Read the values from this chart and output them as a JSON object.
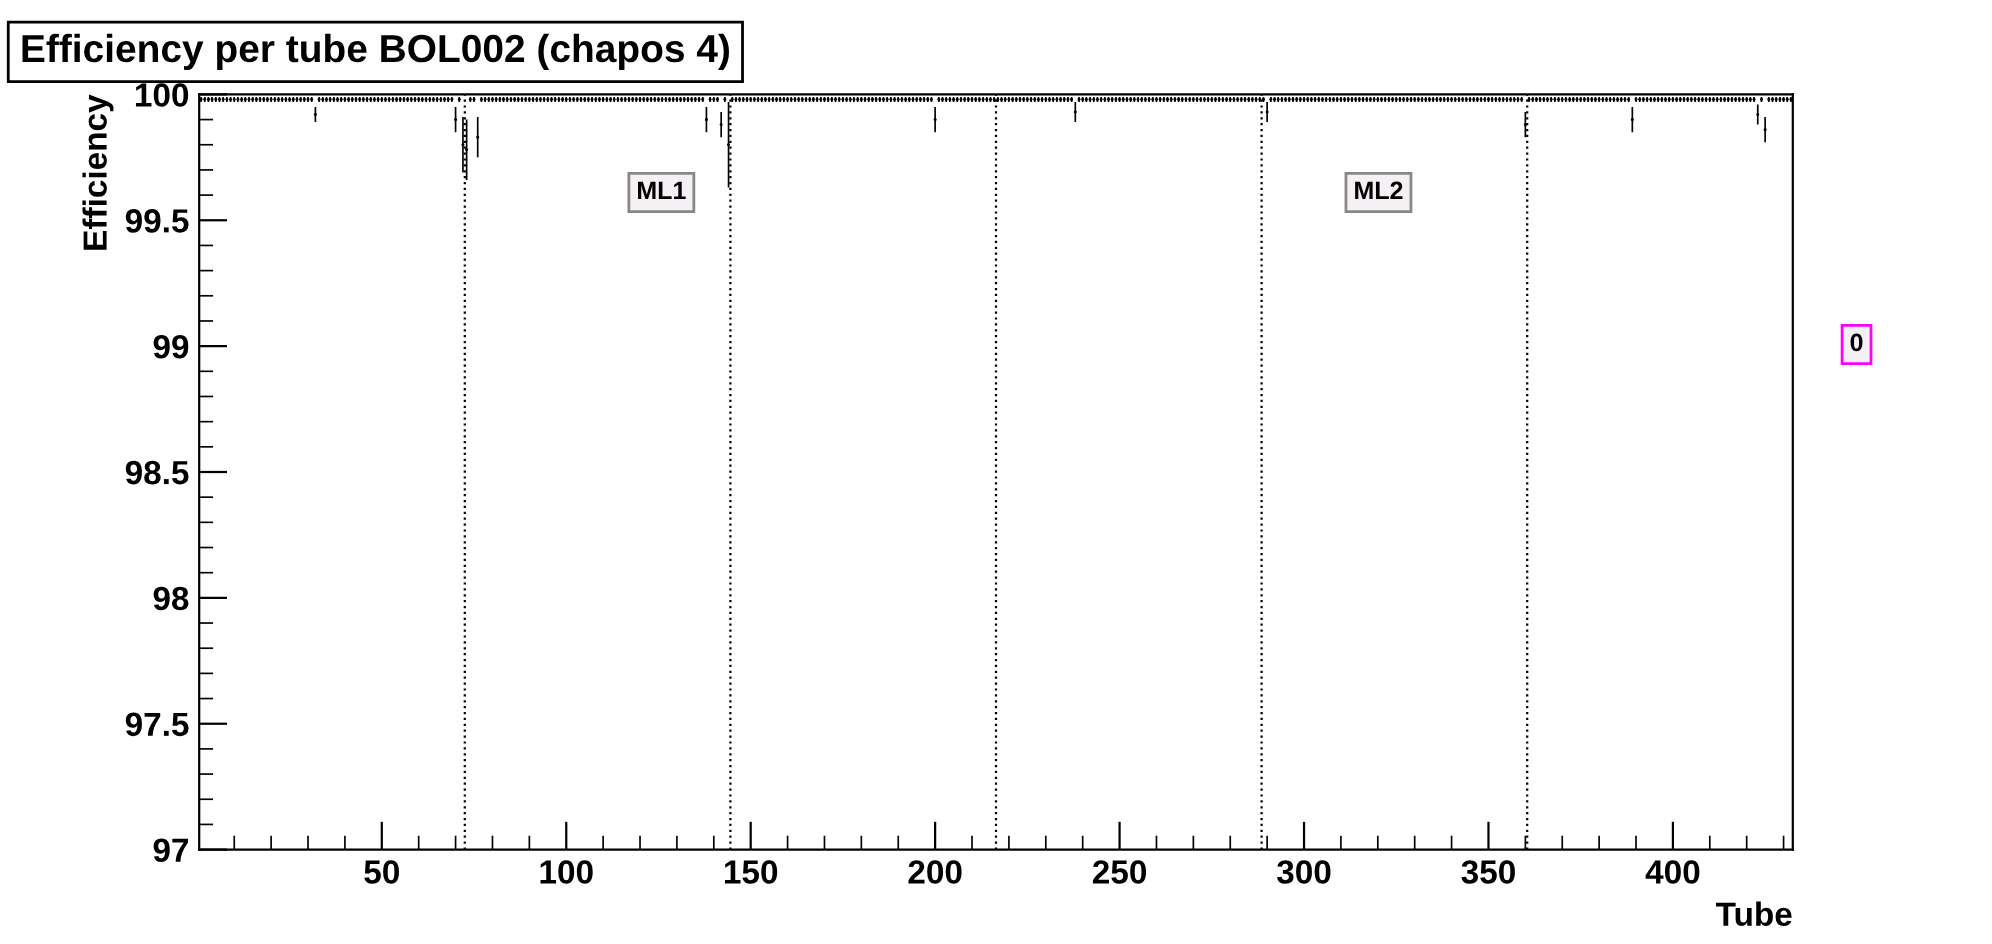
{
  "chart_data": {
    "type": "scatter",
    "title": "Efficiency per tube BOL002 (chapos 4)",
    "xlabel": "Tube",
    "ylabel": "Efficiency",
    "x": [
      1,
      2,
      3,
      4,
      5,
      6,
      7,
      8,
      9,
      10,
      11,
      12,
      13,
      14,
      15,
      16,
      17,
      18,
      19,
      20,
      21,
      22,
      23,
      24,
      25,
      26,
      27,
      28,
      29,
      30,
      31,
      32,
      33,
      34,
      35,
      36,
      37,
      38,
      39,
      40,
      41,
      42,
      43,
      44,
      45,
      46,
      47,
      48,
      49,
      50,
      51,
      52,
      53,
      54,
      55,
      56,
      57,
      58,
      59,
      60,
      61,
      62,
      63,
      64,
      65,
      66,
      67,
      68,
      69,
      70,
      71,
      72,
      73,
      74,
      75,
      76,
      77,
      78,
      79,
      80,
      81,
      82,
      83,
      84,
      85,
      86,
      87,
      88,
      89,
      90,
      91,
      92,
      93,
      94,
      95,
      96,
      97,
      98,
      99,
      100,
      101,
      102,
      103,
      104,
      105,
      106,
      107,
      108,
      109,
      110,
      111,
      112,
      113,
      114,
      115,
      116,
      117,
      118,
      119,
      120,
      121,
      122,
      123,
      124,
      125,
      126,
      127,
      128,
      129,
      130,
      131,
      132,
      133,
      134,
      135,
      136,
      137,
      138,
      139,
      140,
      141,
      142,
      143,
      144,
      145,
      146,
      147,
      148,
      149,
      150,
      151,
      152,
      153,
      154,
      155,
      156,
      157,
      158,
      159,
      160,
      161,
      162,
      163,
      164,
      165,
      166,
      167,
      168,
      169,
      170,
      171,
      172,
      173,
      174,
      175,
      176,
      177,
      178,
      179,
      180,
      181,
      182,
      183,
      184,
      185,
      186,
      187,
      188,
      189,
      190,
      191,
      192,
      193,
      194,
      195,
      196,
      197,
      198,
      199,
      200,
      201,
      202,
      203,
      204,
      205,
      206,
      207,
      208,
      209,
      210,
      211,
      212,
      213,
      214,
      215,
      216,
      217,
      218,
      219,
      220,
      221,
      222,
      223,
      224,
      225,
      226,
      227,
      228,
      229,
      230,
      231,
      232,
      233,
      234,
      235,
      236,
      237,
      238,
      239,
      240,
      241,
      242,
      243,
      244,
      245,
      246,
      247,
      248,
      249,
      250,
      251,
      252,
      253,
      254,
      255,
      256,
      257,
      258,
      259,
      260,
      261,
      262,
      263,
      264,
      265,
      266,
      267,
      268,
      269,
      270,
      271,
      272,
      273,
      274,
      275,
      276,
      277,
      278,
      279,
      280,
      281,
      282,
      283,
      284,
      285,
      286,
      287,
      288,
      289,
      290,
      291,
      292,
      293,
      294,
      295,
      296,
      297,
      298,
      299,
      300,
      301,
      302,
      303,
      304,
      305,
      306,
      307,
      308,
      309,
      310,
      311,
      312,
      313,
      314,
      315,
      316,
      317,
      318,
      319,
      320,
      321,
      322,
      323,
      324,
      325,
      326,
      327,
      328,
      329,
      330,
      331,
      332,
      333,
      334,
      335,
      336,
      337,
      338,
      339,
      340,
      341,
      342,
      343,
      344,
      345,
      346,
      347,
      348,
      349,
      350,
      351,
      352,
      353,
      354,
      355,
      356,
      357,
      358,
      359,
      360,
      361,
      362,
      363,
      364,
      365,
      366,
      367,
      368,
      369,
      370,
      371,
      372,
      373,
      374,
      375,
      376,
      377,
      378,
      379,
      380,
      381,
      382,
      383,
      384,
      385,
      386,
      387,
      388,
      389,
      390,
      391,
      392,
      393,
      394,
      395,
      396,
      397,
      398,
      399,
      400,
      401,
      402,
      403,
      404,
      405,
      406,
      407,
      408,
      409,
      410,
      411,
      412,
      413,
      414,
      415,
      416,
      417,
      418,
      419,
      420,
      421,
      422,
      423,
      424,
      425,
      426,
      427,
      428,
      429,
      430,
      431,
      432
    ],
    "series": [
      {
        "color": "#000000",
        "values": [
          99.98,
          99.98,
          99.98,
          99.98,
          99.98,
          99.98,
          99.98,
          99.98,
          99.98,
          99.98,
          99.98,
          99.98,
          99.98,
          99.98,
          99.98,
          99.98,
          99.98,
          99.98,
          99.98,
          99.98,
          99.98,
          99.98,
          99.98,
          99.98,
          99.98,
          99.98,
          99.98,
          99.98,
          99.98,
          99.98,
          99.98,
          99.92,
          99.98,
          99.98,
          99.98,
          99.98,
          99.98,
          99.98,
          99.98,
          99.98,
          99.98,
          99.98,
          99.98,
          99.98,
          99.98,
          99.98,
          99.98,
          99.98,
          99.98,
          99.98,
          99.98,
          99.98,
          99.98,
          99.98,
          99.98,
          99.98,
          99.98,
          99.98,
          99.98,
          99.98,
          99.98,
          99.98,
          99.98,
          99.98,
          99.98,
          99.98,
          99.98,
          99.98,
          99.98,
          99.9,
          99.98,
          99.8,
          99.78,
          99.98,
          99.98,
          99.83,
          99.98,
          99.98,
          99.98,
          99.98,
          99.98,
          99.98,
          99.98,
          99.98,
          99.98,
          99.98,
          99.98,
          99.98,
          99.98,
          99.98,
          99.98,
          99.98,
          99.98,
          99.98,
          99.98,
          99.98,
          99.98,
          99.98,
          99.98,
          99.98,
          99.98,
          99.98,
          99.98,
          99.98,
          99.98,
          99.98,
          99.98,
          99.98,
          99.98,
          99.98,
          99.98,
          99.98,
          99.98,
          99.98,
          99.98,
          99.98,
          99.98,
          99.98,
          99.98,
          99.98,
          99.98,
          99.98,
          99.98,
          99.98,
          99.98,
          99.98,
          99.98,
          99.98,
          99.98,
          99.98,
          99.98,
          99.98,
          99.98,
          99.98,
          99.98,
          99.98,
          99.98,
          99.9,
          99.98,
          99.98,
          99.98,
          99.88,
          99.98,
          99.8,
          99.98,
          99.98,
          99.98,
          99.98,
          99.98,
          99.98,
          99.98,
          99.98,
          99.98,
          99.98,
          99.98,
          99.98,
          99.98,
          99.98,
          99.98,
          99.98,
          99.98,
          99.98,
          99.98,
          99.98,
          99.98,
          99.98,
          99.98,
          99.98,
          99.98,
          99.98,
          99.98,
          99.98,
          99.98,
          99.98,
          99.98,
          99.98,
          99.98,
          99.98,
          99.98,
          99.98,
          99.98,
          99.98,
          99.98,
          99.98,
          99.98,
          99.98,
          99.98,
          99.98,
          99.98,
          99.98,
          99.98,
          99.98,
          99.98,
          99.98,
          99.98,
          99.98,
          99.98,
          99.98,
          99.98,
          99.9,
          99.98,
          99.98,
          99.98,
          99.98,
          99.98,
          99.98,
          99.98,
          99.98,
          99.98,
          99.98,
          99.98,
          99.98,
          99.98,
          99.98,
          99.98,
          99.98,
          99.98,
          99.98,
          99.98,
          99.98,
          99.98,
          99.98,
          99.98,
          99.98,
          99.98,
          99.98,
          99.98,
          99.98,
          99.98,
          99.98,
          99.98,
          99.98,
          99.98,
          99.98,
          99.98,
          99.98,
          99.98,
          99.93,
          99.98,
          99.98,
          99.98,
          99.98,
          99.98,
          99.98,
          99.98,
          99.98,
          99.98,
          99.98,
          99.98,
          99.98,
          99.98,
          99.98,
          99.98,
          99.98,
          99.98,
          99.98,
          99.98,
          99.98,
          99.98,
          99.98,
          99.98,
          99.98,
          99.98,
          99.98,
          99.98,
          99.98,
          99.98,
          99.98,
          99.98,
          99.98,
          99.98,
          99.98,
          99.98,
          99.98,
          99.98,
          99.98,
          99.98,
          99.98,
          99.98,
          99.98,
          99.98,
          99.98,
          99.98,
          99.98,
          99.98,
          99.98,
          99.98,
          99.98,
          99.98,
          99.93,
          99.98,
          99.98,
          99.98,
          99.98,
          99.98,
          99.98,
          99.98,
          99.98,
          99.98,
          99.98,
          99.98,
          99.98,
          99.98,
          99.98,
          99.98,
          99.98,
          99.98,
          99.98,
          99.98,
          99.98,
          99.98,
          99.98,
          99.98,
          99.98,
          99.98,
          99.98,
          99.98,
          99.98,
          99.98,
          99.98,
          99.98,
          99.98,
          99.98,
          99.98,
          99.98,
          99.98,
          99.98,
          99.98,
          99.98,
          99.98,
          99.98,
          99.98,
          99.98,
          99.98,
          99.98,
          99.98,
          99.98,
          99.98,
          99.98,
          99.98,
          99.98,
          99.98,
          99.98,
          99.98,
          99.98,
          99.98,
          99.98,
          99.98,
          99.98,
          99.98,
          99.98,
          99.98,
          99.98,
          99.98,
          99.98,
          99.98,
          99.98,
          99.98,
          99.98,
          99.88,
          99.98,
          99.98,
          99.98,
          99.98,
          99.98,
          99.98,
          99.98,
          99.98,
          99.98,
          99.98,
          99.98,
          99.98,
          99.98,
          99.98,
          99.98,
          99.98,
          99.98,
          99.98,
          99.98,
          99.98,
          99.98,
          99.98,
          99.98,
          99.98,
          99.98,
          99.98,
          99.98,
          99.98,
          99.9,
          99.98,
          99.98,
          99.98,
          99.98,
          99.98,
          99.98,
          99.98,
          99.98,
          99.98,
          99.98,
          99.98,
          99.98,
          99.98,
          99.98,
          99.98,
          99.98,
          99.98,
          99.98,
          99.98,
          99.98,
          99.98,
          99.98,
          99.98,
          99.98,
          99.98,
          99.98,
          99.98,
          99.98,
          99.98,
          99.98,
          99.98,
          99.98,
          99.98,
          99.92,
          99.98,
          99.86,
          99.98,
          99.98,
          99.98,
          99.98,
          99.98,
          99.98,
          99.98
        ],
        "errors": [
          0.01,
          0.01,
          0.01,
          0.01,
          0.01,
          0.01,
          0.01,
          0.01,
          0.01,
          0.01,
          0.01,
          0.01,
          0.01,
          0.01,
          0.01,
          0.01,
          0.01,
          0.01,
          0.01,
          0.01,
          0.01,
          0.01,
          0.01,
          0.01,
          0.01,
          0.01,
          0.01,
          0.01,
          0.01,
          0.01,
          0.01,
          0.03,
          0.01,
          0.01,
          0.01,
          0.01,
          0.01,
          0.01,
          0.01,
          0.01,
          0.01,
          0.01,
          0.01,
          0.01,
          0.01,
          0.01,
          0.01,
          0.01,
          0.01,
          0.01,
          0.01,
          0.01,
          0.01,
          0.01,
          0.01,
          0.01,
          0.01,
          0.01,
          0.01,
          0.01,
          0.01,
          0.01,
          0.01,
          0.01,
          0.01,
          0.01,
          0.01,
          0.01,
          0.01,
          0.05,
          0.01,
          0.11,
          0.12,
          0.01,
          0.01,
          0.08,
          0.01,
          0.01,
          0.01,
          0.01,
          0.01,
          0.01,
          0.01,
          0.01,
          0.01,
          0.01,
          0.01,
          0.01,
          0.01,
          0.01,
          0.01,
          0.01,
          0.01,
          0.01,
          0.01,
          0.01,
          0.01,
          0.01,
          0.01,
          0.01,
          0.01,
          0.01,
          0.01,
          0.01,
          0.01,
          0.01,
          0.01,
          0.01,
          0.01,
          0.01,
          0.01,
          0.01,
          0.01,
          0.01,
          0.01,
          0.01,
          0.01,
          0.01,
          0.01,
          0.01,
          0.01,
          0.01,
          0.01,
          0.01,
          0.01,
          0.01,
          0.01,
          0.01,
          0.01,
          0.01,
          0.01,
          0.01,
          0.01,
          0.01,
          0.01,
          0.01,
          0.01,
          0.05,
          0.01,
          0.01,
          0.01,
          0.05,
          0.01,
          0.17,
          0.01,
          0.01,
          0.01,
          0.01,
          0.01,
          0.01,
          0.01,
          0.01,
          0.01,
          0.01,
          0.01,
          0.01,
          0.01,
          0.01,
          0.01,
          0.01,
          0.01,
          0.01,
          0.01,
          0.01,
          0.01,
          0.01,
          0.01,
          0.01,
          0.01,
          0.01,
          0.01,
          0.01,
          0.01,
          0.01,
          0.01,
          0.01,
          0.01,
          0.01,
          0.01,
          0.01,
          0.01,
          0.01,
          0.01,
          0.01,
          0.01,
          0.01,
          0.01,
          0.01,
          0.01,
          0.01,
          0.01,
          0.01,
          0.01,
          0.01,
          0.01,
          0.01,
          0.01,
          0.01,
          0.01,
          0.05,
          0.01,
          0.01,
          0.01,
          0.01,
          0.01,
          0.01,
          0.01,
          0.01,
          0.01,
          0.01,
          0.01,
          0.01,
          0.01,
          0.01,
          0.01,
          0.01,
          0.01,
          0.01,
          0.01,
          0.01,
          0.01,
          0.01,
          0.01,
          0.01,
          0.01,
          0.01,
          0.01,
          0.01,
          0.01,
          0.01,
          0.01,
          0.01,
          0.01,
          0.01,
          0.01,
          0.01,
          0.01,
          0.04,
          0.01,
          0.01,
          0.01,
          0.01,
          0.01,
          0.01,
          0.01,
          0.01,
          0.01,
          0.01,
          0.01,
          0.01,
          0.01,
          0.01,
          0.01,
          0.01,
          0.01,
          0.01,
          0.01,
          0.01,
          0.01,
          0.01,
          0.01,
          0.01,
          0.01,
          0.01,
          0.01,
          0.01,
          0.01,
          0.01,
          0.01,
          0.01,
          0.01,
          0.01,
          0.01,
          0.01,
          0.01,
          0.01,
          0.01,
          0.01,
          0.01,
          0.01,
          0.01,
          0.01,
          0.01,
          0.01,
          0.01,
          0.01,
          0.01,
          0.01,
          0.01,
          0.04,
          0.01,
          0.01,
          0.01,
          0.01,
          0.01,
          0.01,
          0.01,
          0.01,
          0.01,
          0.01,
          0.01,
          0.01,
          0.01,
          0.01,
          0.01,
          0.01,
          0.01,
          0.01,
          0.01,
          0.01,
          0.01,
          0.01,
          0.01,
          0.01,
          0.01,
          0.01,
          0.01,
          0.01,
          0.01,
          0.01,
          0.01,
          0.01,
          0.01,
          0.01,
          0.01,
          0.01,
          0.01,
          0.01,
          0.01,
          0.01,
          0.01,
          0.01,
          0.01,
          0.01,
          0.01,
          0.01,
          0.01,
          0.01,
          0.01,
          0.01,
          0.01,
          0.01,
          0.01,
          0.01,
          0.01,
          0.01,
          0.01,
          0.01,
          0.01,
          0.01,
          0.01,
          0.01,
          0.01,
          0.01,
          0.01,
          0.01,
          0.01,
          0.01,
          0.01,
          0.05,
          0.01,
          0.01,
          0.01,
          0.01,
          0.01,
          0.01,
          0.01,
          0.01,
          0.01,
          0.01,
          0.01,
          0.01,
          0.01,
          0.01,
          0.01,
          0.01,
          0.01,
          0.01,
          0.01,
          0.01,
          0.01,
          0.01,
          0.01,
          0.01,
          0.01,
          0.01,
          0.01,
          0.01,
          0.05,
          0.01,
          0.01,
          0.01,
          0.01,
          0.01,
          0.01,
          0.01,
          0.01,
          0.01,
          0.01,
          0.01,
          0.01,
          0.01,
          0.01,
          0.01,
          0.01,
          0.01,
          0.01,
          0.01,
          0.01,
          0.01,
          0.01,
          0.01,
          0.01,
          0.01,
          0.01,
          0.01,
          0.01,
          0.01,
          0.01,
          0.01,
          0.01,
          0.01,
          0.04,
          0.01,
          0.05,
          0.01,
          0.01,
          0.01,
          0.01,
          0.01,
          0.01,
          0.01
        ]
      }
    ],
    "xlim": [
      0.5,
      432.5
    ],
    "xticks": [
      50,
      100,
      150,
      200,
      250,
      300,
      350,
      400
    ],
    "ylim": [
      97,
      100
    ],
    "yticks": [
      97,
      97.5,
      98,
      98.5,
      99,
      99.5,
      100
    ],
    "ref_lines": [
      {
        "axis": "x",
        "value": 72.5,
        "color": "#000000",
        "line_style": "dotted"
      },
      {
        "axis": "x",
        "value": 144.5,
        "color": "#000000",
        "line_style": "dotted"
      },
      {
        "axis": "x",
        "value": 216.5,
        "color": "#000000",
        "line_style": "dotted"
      },
      {
        "axis": "x",
        "value": 288.5,
        "color": "#000000",
        "line_style": "dotted"
      },
      {
        "axis": "x",
        "value": 360.5,
        "color": "#000000",
        "line_style": "dotted"
      }
    ],
    "annotations": [
      "ML1",
      "ML2",
      "0"
    ],
    "grid": false,
    "marker": "circle"
  }
}
